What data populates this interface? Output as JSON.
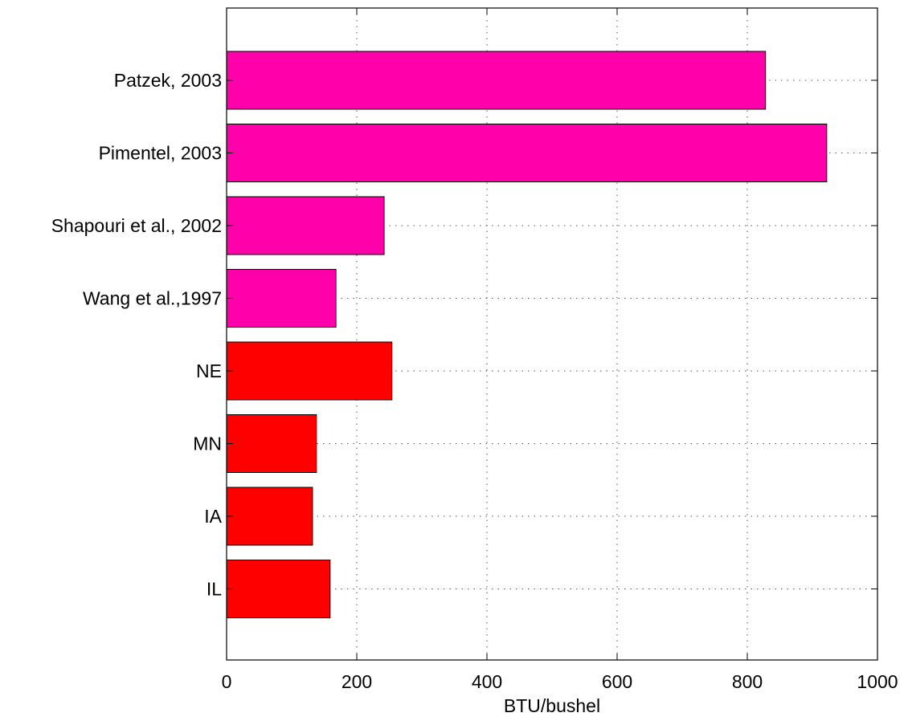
{
  "chart_data": {
    "type": "bar",
    "orientation": "horizontal",
    "categories": [
      "Patzek, 2003",
      "Pimentel, 2003",
      "Shapouri et al., 2002",
      "Wang et al.,1997",
      "NE",
      "MN",
      "IA",
      "IL"
    ],
    "values": [
      828,
      922,
      242,
      168,
      254,
      138,
      132,
      159
    ],
    "bar_colors": [
      "#ff00aa",
      "#ff00aa",
      "#ff00aa",
      "#ff00aa",
      "#ff0000",
      "#ff0000",
      "#ff0000",
      "#ff0000"
    ],
    "xlabel": "BTU/bushel",
    "ylabel": "",
    "title": "",
    "xlim": [
      0,
      1000
    ],
    "xticks": [
      0,
      200,
      400,
      600,
      800,
      1000
    ],
    "grid": true,
    "legend": "none"
  }
}
